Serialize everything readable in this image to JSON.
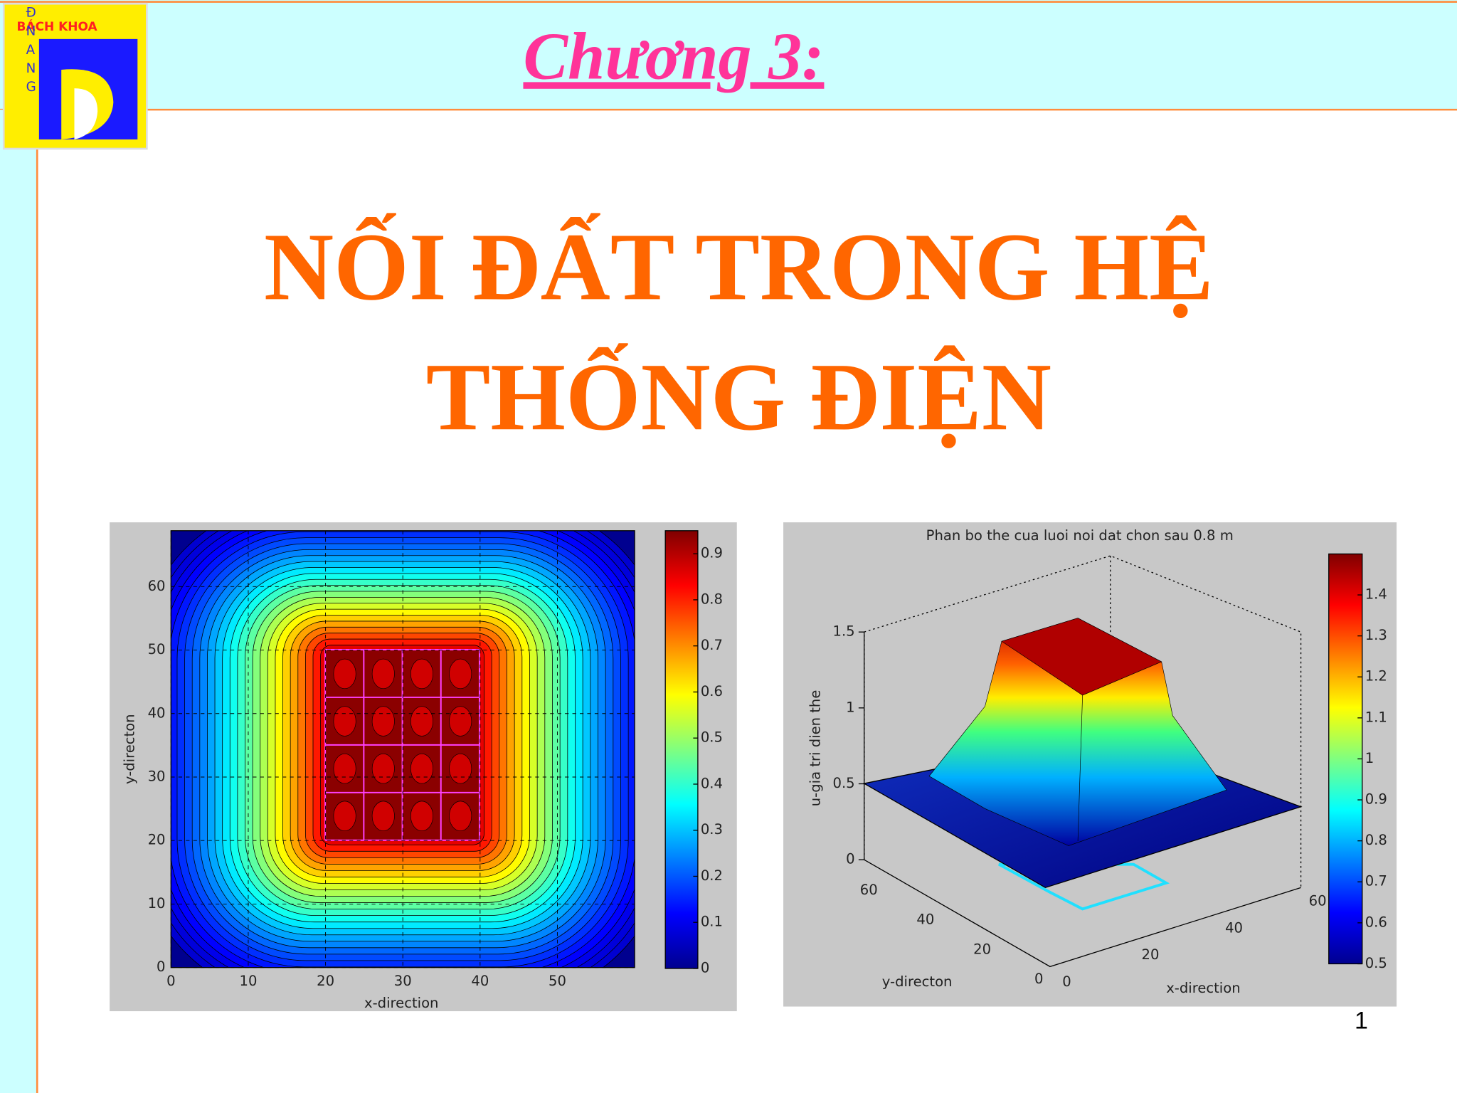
{
  "header": {
    "logo_top": "BÁCH KHOA",
    "logo_side": [
      "Đ",
      "N",
      "A",
      "N",
      "G"
    ],
    "chapter": "Chương 3:"
  },
  "title": [
    "NỐI ĐẤT TRONG HỆ",
    "THỐNG ĐIỆN"
  ],
  "figures": [
    {
      "xlabel": "x-direction",
      "ylabel": "y-directon",
      "xticks": [
        0,
        10,
        20,
        30,
        40,
        50
      ],
      "yticks": [
        0,
        10,
        20,
        30,
        40,
        50,
        60
      ],
      "colorbar_ticks": [
        0,
        0.1,
        0.2,
        0.3,
        0.4,
        0.5,
        0.6,
        0.7,
        0.8,
        0.9
      ]
    },
    {
      "title": "Phan bo the cua luoi noi dat chon sau 0.8 m",
      "xlabel": "x-direction",
      "ylabel": "y-directon",
      "zlabel": "u-gia tri dien the",
      "xticks": [
        0,
        20,
        40,
        60
      ],
      "yticks": [
        0,
        20,
        40,
        60
      ],
      "zticks": [
        0,
        0.5,
        1,
        1.5
      ],
      "colorbar_ticks": [
        0.5,
        0.6,
        0.7,
        0.8,
        0.9,
        1,
        1.1,
        1.2,
        1.3,
        1.4
      ]
    }
  ],
  "page_number": "1"
}
